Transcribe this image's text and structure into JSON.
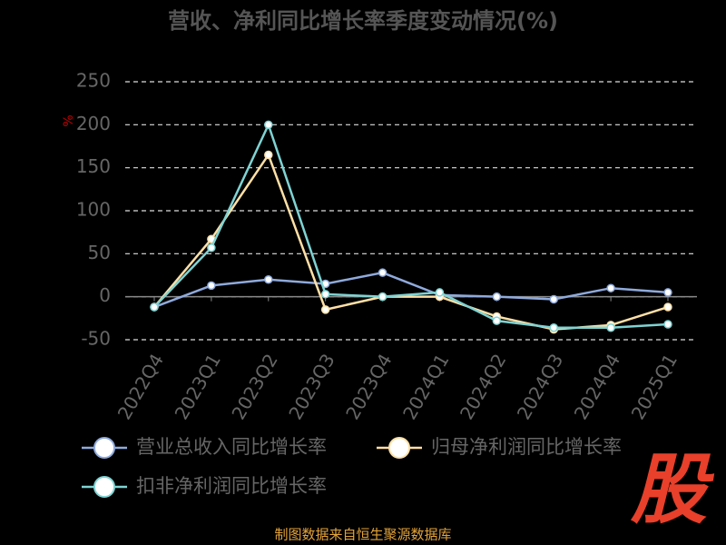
{
  "chart_data": {
    "type": "line",
    "title": "营收、净利同比增长率季度变动情况(%)",
    "y_label": "%",
    "categories": [
      "2022Q4",
      "2023Q1",
      "2023Q2",
      "2023Q3",
      "2023Q4",
      "2024Q1",
      "2024Q2",
      "2024Q3",
      "2024Q4",
      "2025Q1"
    ],
    "series": [
      {
        "name": "营业总收入同比增长率",
        "color": "#8faadc",
        "values": [
          -12,
          13,
          20,
          15,
          28,
          2,
          0,
          -3,
          10,
          5
        ]
      },
      {
        "name": "归母净利润同比增长率",
        "color": "#ffe0a6",
        "values": [
          -12,
          67,
          165,
          -15,
          0,
          0,
          -23,
          -38,
          -33,
          -12
        ]
      },
      {
        "name": "扣非净利润同比增长率",
        "color": "#7fd3d3",
        "values": [
          -12,
          57,
          200,
          3,
          0,
          5,
          -28,
          -36,
          -36,
          -32
        ]
      }
    ],
    "ylim": [
      -50,
      250
    ],
    "yticks": [
      -50,
      0,
      50,
      100,
      150,
      200,
      250
    ],
    "grid": true,
    "source": "制图数据来自恒生聚源数据库",
    "watermark": "股"
  }
}
